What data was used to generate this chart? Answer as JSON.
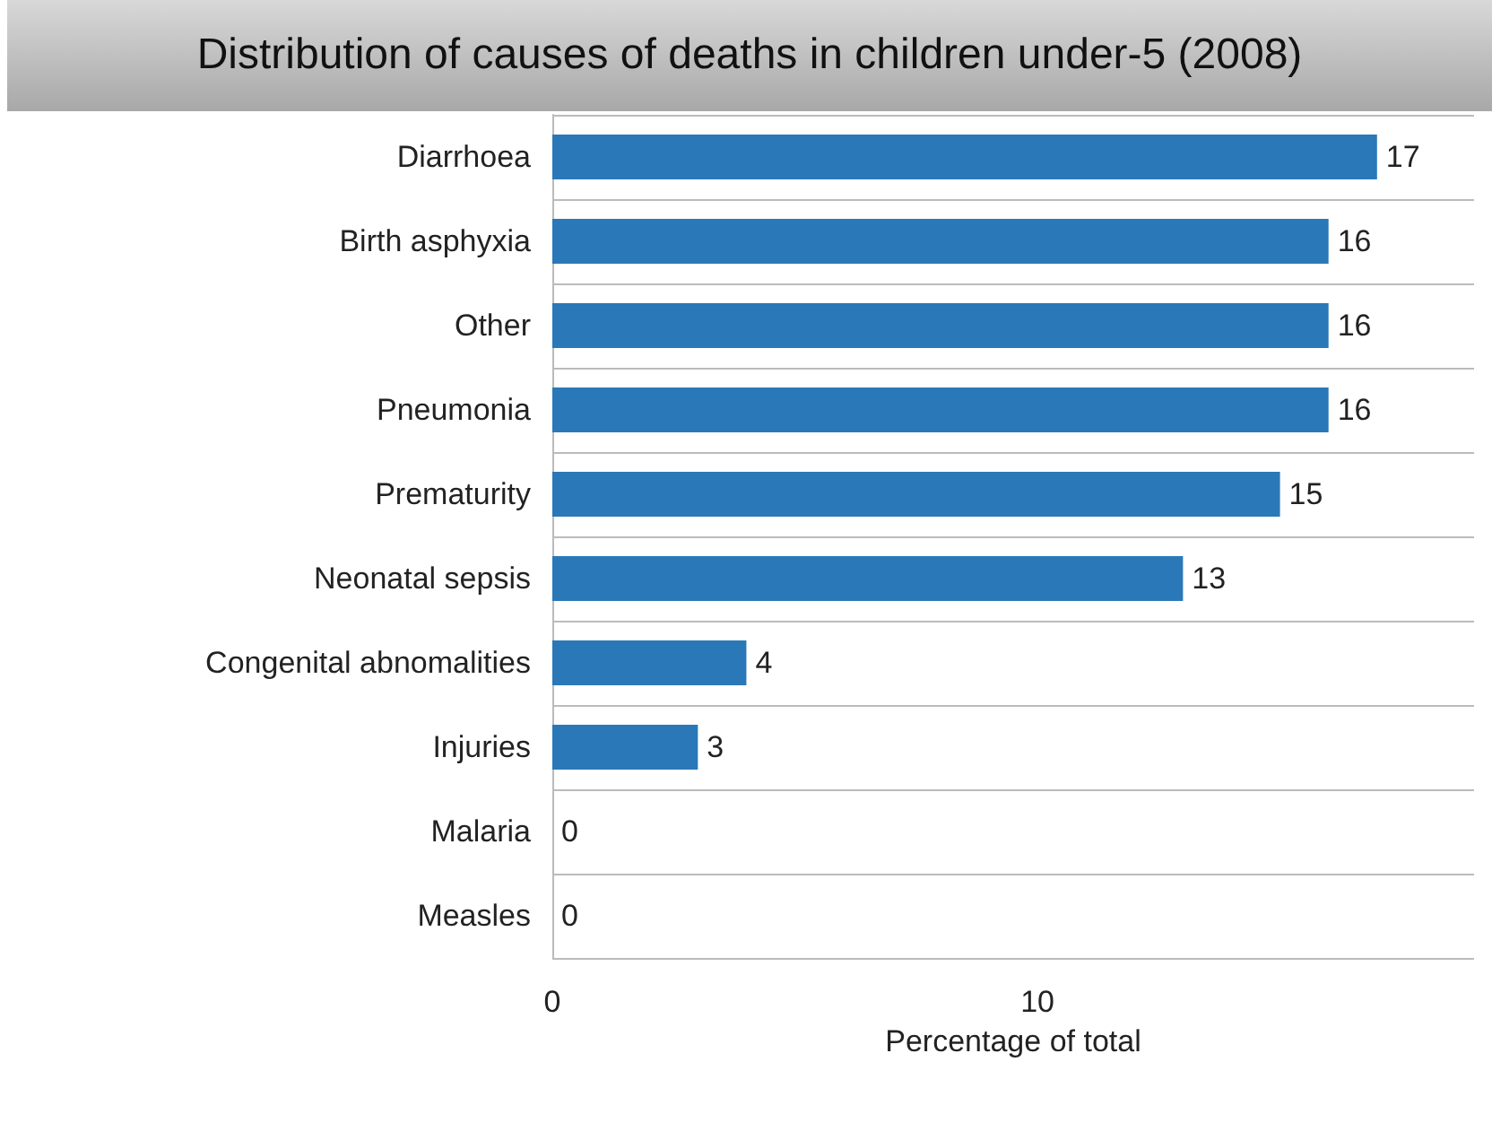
{
  "chart_data": {
    "type": "bar",
    "orientation": "horizontal",
    "title": "Distribution of causes of deaths in children under-5  (2008)",
    "xlabel": "Percentage of total",
    "categories": [
      "Diarrhoea",
      "Birth asphyxia",
      "Other",
      "Pneumonia",
      "Prematurity",
      "Neonatal sepsis",
      "Congenital abnomalities",
      "Injuries",
      "Malaria",
      "Measles"
    ],
    "values": [
      17,
      16,
      16,
      16,
      15,
      13,
      4,
      3,
      0,
      0
    ],
    "color": "#2a78b8",
    "xlim": [
      0,
      19
    ],
    "xticks": [
      0,
      10
    ],
    "grid": "y",
    "data_labels": true
  }
}
